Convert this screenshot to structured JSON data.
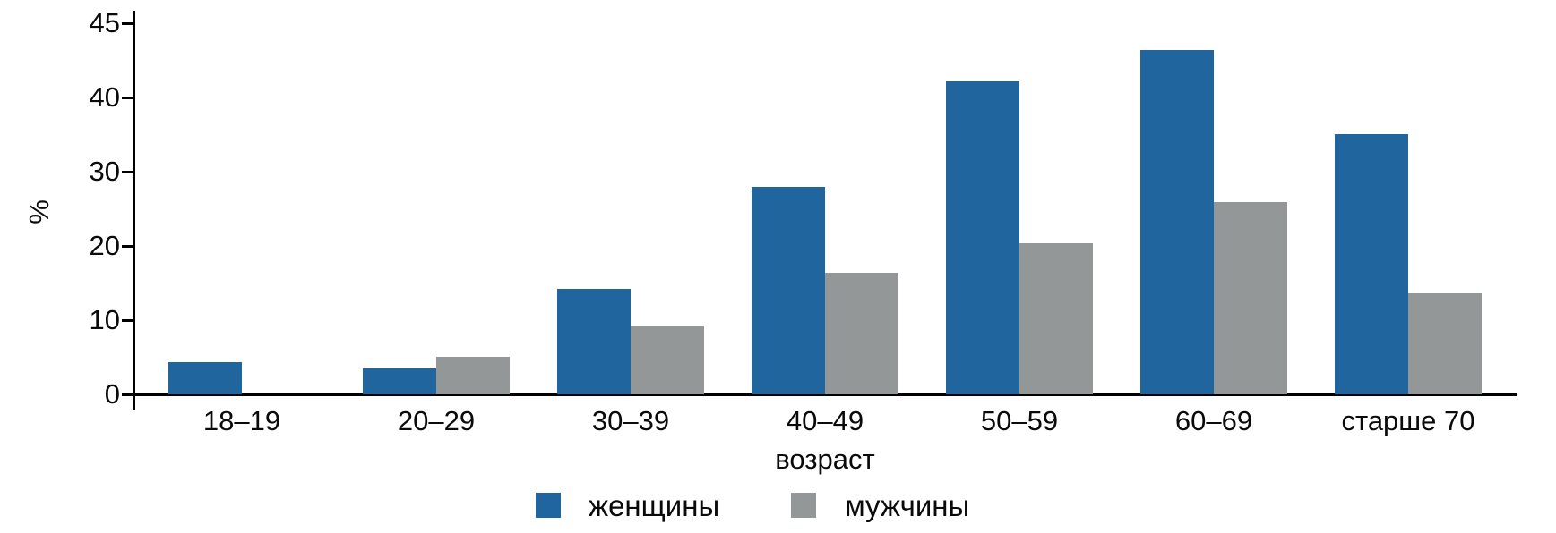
{
  "chart_data": {
    "type": "bar",
    "title": "",
    "xlabel": "возраст",
    "ylabel": "%",
    "categories": [
      "18–19",
      "20–29",
      "30–39",
      "40–49",
      "50–59",
      "60–69",
      "старше 70"
    ],
    "series": [
      {
        "name": "женщины",
        "color": "#21659e",
        "values": [
          4.3,
          3.5,
          14.2,
          27.9,
          41.1,
          43.2,
          35.0
        ]
      },
      {
        "name": "мужчины",
        "color": "#939798",
        "values": [
          null,
          5.0,
          9.3,
          16.4,
          20.4,
          25.9,
          13.6
        ]
      }
    ],
    "yticks": [
      0,
      10,
      20,
      30,
      40,
      45
    ],
    "ylim": [
      0,
      45
    ],
    "grid": false,
    "legend_position": "bottom",
    "axis_note": "top tick 45 is drawn a full 10-unit step above the 40 tick"
  }
}
